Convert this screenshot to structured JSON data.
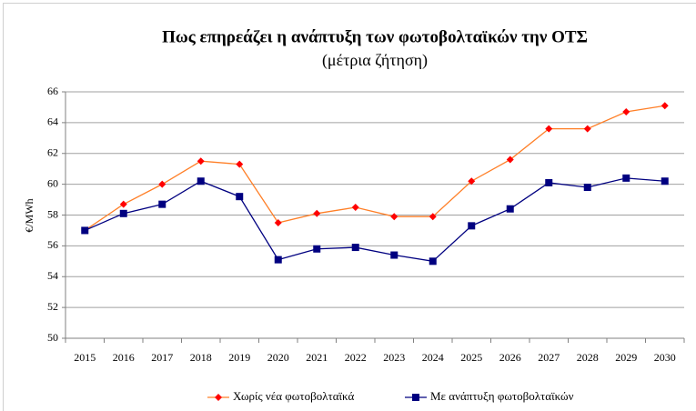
{
  "chart_data": {
    "type": "line",
    "title": "Πως επηρεάζει η ανάπτυξη των φωτοβολταϊκών την ΟΤΣ",
    "subtitle": "(μέτρια ζήτηση)",
    "y_label": "€/MWh",
    "categories": [
      "2015",
      "2016",
      "2017",
      "2018",
      "2019",
      "2020",
      "2021",
      "2022",
      "2023",
      "2024",
      "2025",
      "2026",
      "2027",
      "2028",
      "2029",
      "2030"
    ],
    "series": [
      {
        "name": "Χωρίς νέα φωτοβολταϊκά",
        "color": "#ff7f27",
        "marker_color": "#ff0000",
        "marker": "diamond",
        "values": [
          57.0,
          58.7,
          60.0,
          61.5,
          61.3,
          57.5,
          58.1,
          58.5,
          57.9,
          57.9,
          60.2,
          61.6,
          63.6,
          63.6,
          64.7,
          65.1
        ]
      },
      {
        "name": "Με ανάπτυξη φωτοβολταϊκών",
        "color": "#000080",
        "marker_color": "#000080",
        "marker": "square",
        "values": [
          57.0,
          58.1,
          58.7,
          60.2,
          59.2,
          55.1,
          55.8,
          55.9,
          55.4,
          55.0,
          57.3,
          58.4,
          60.1,
          59.8,
          60.4,
          60.2
        ]
      }
    ],
    "ylim": [
      50,
      66
    ],
    "yticks": [
      50,
      52,
      54,
      56,
      58,
      60,
      62,
      64,
      66
    ],
    "grid": true,
    "legend": "bottom"
  }
}
